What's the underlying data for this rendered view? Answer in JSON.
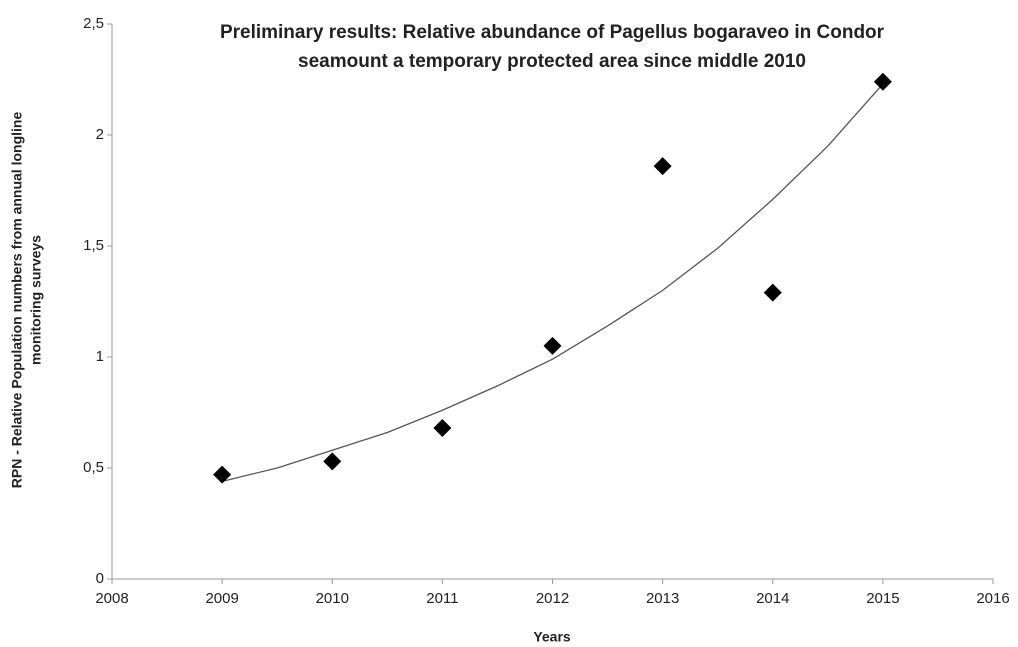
{
  "chart_data": {
    "type": "scatter",
    "title": [
      "Preliminary results: Relative abundance of Pagellus bogaraveo in Condor",
      "seamount a temporary protected area since middle 2010"
    ],
    "x_label": "Years",
    "y_label": [
      "RPN - Relative Population numbers from annual longline",
      "monitoring surveys"
    ],
    "x": [
      2009,
      2010,
      2011,
      2012,
      2013,
      2014,
      2015
    ],
    "values": [
      0.47,
      0.53,
      0.68,
      1.05,
      1.86,
      1.29,
      2.24
    ],
    "color": "#000000",
    "trendline": {
      "x": [
        2009,
        2009.5,
        2010,
        2010.5,
        2011,
        2011.5,
        2012,
        2012.5,
        2013,
        2013.5,
        2014,
        2014.5,
        2015
      ],
      "values": [
        0.44,
        0.5,
        0.58,
        0.66,
        0.76,
        0.87,
        0.99,
        1.14,
        1.3,
        1.49,
        1.71,
        1.95,
        2.23
      ],
      "color": "#555555"
    },
    "xlim": [
      2008,
      2016
    ],
    "xticks": [
      2008,
      2009,
      2010,
      2011,
      2012,
      2013,
      2014,
      2015,
      2016
    ],
    "ylim": [
      0,
      2.5
    ],
    "yticks": [
      0,
      {
        "value": 0.5,
        "label": "0,5"
      },
      1,
      {
        "value": 1.5,
        "label": "1,5"
      },
      2,
      {
        "value": 2.5,
        "label": "2,5"
      }
    ],
    "grid": false
  }
}
